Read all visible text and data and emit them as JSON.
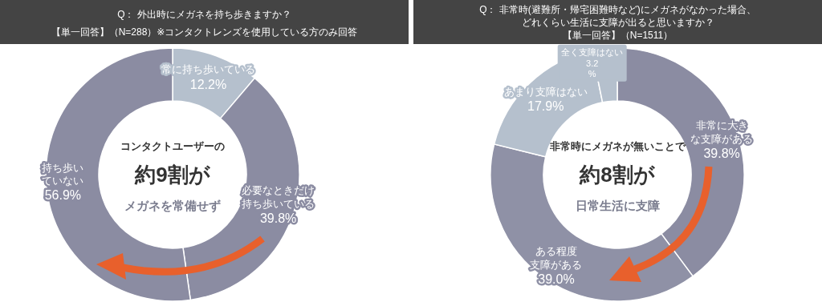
{
  "chart_data": [
    {
      "type": "donut",
      "title": "Q： 外出時にメガネを持ち歩きますか？",
      "subtitle": "【単一回答】（N=288）※コンタクトレンズを使用している方のみ回答",
      "categories": [
        "常に持ち歩いている",
        "必要なときだけ持ち歩いている",
        "持ち歩いていない"
      ],
      "values": [
        12.2,
        39.8,
        56.9
      ],
      "value_labels": [
        "12.2%",
        "39.8%",
        "56.9%"
      ],
      "colors": [
        "#b5c0cd",
        "#8b8ca2",
        "#8b8ca2"
      ],
      "annotations": [
        "コンタクトユーザーの",
        "約9割が",
        "メガネを常備せず"
      ]
    },
    {
      "type": "donut",
      "title": "Q： 非常時(避難所・帰宅困難時など)にメガネがなかった場合、どれくらい生活に支障が出ると思いますか？",
      "subtitle": "【単一回答】（N=1511）",
      "categories": [
        "非常に大きな支障がある",
        "ある程度支障がある",
        "あまり支障はない",
        "全く支障はない"
      ],
      "values": [
        39.8,
        39.0,
        17.9,
        3.2
      ],
      "value_labels": [
        "39.8%",
        "39.0%",
        "17.9%",
        "3.2\n%"
      ],
      "colors": [
        "#8b8ca2",
        "#8f91a6",
        "#b5c0cd",
        "#b5c0cd"
      ],
      "annotations": [
        "非常時にメガネが無いことで",
        "約8割が",
        "日常生活に支障"
      ]
    }
  ]
}
